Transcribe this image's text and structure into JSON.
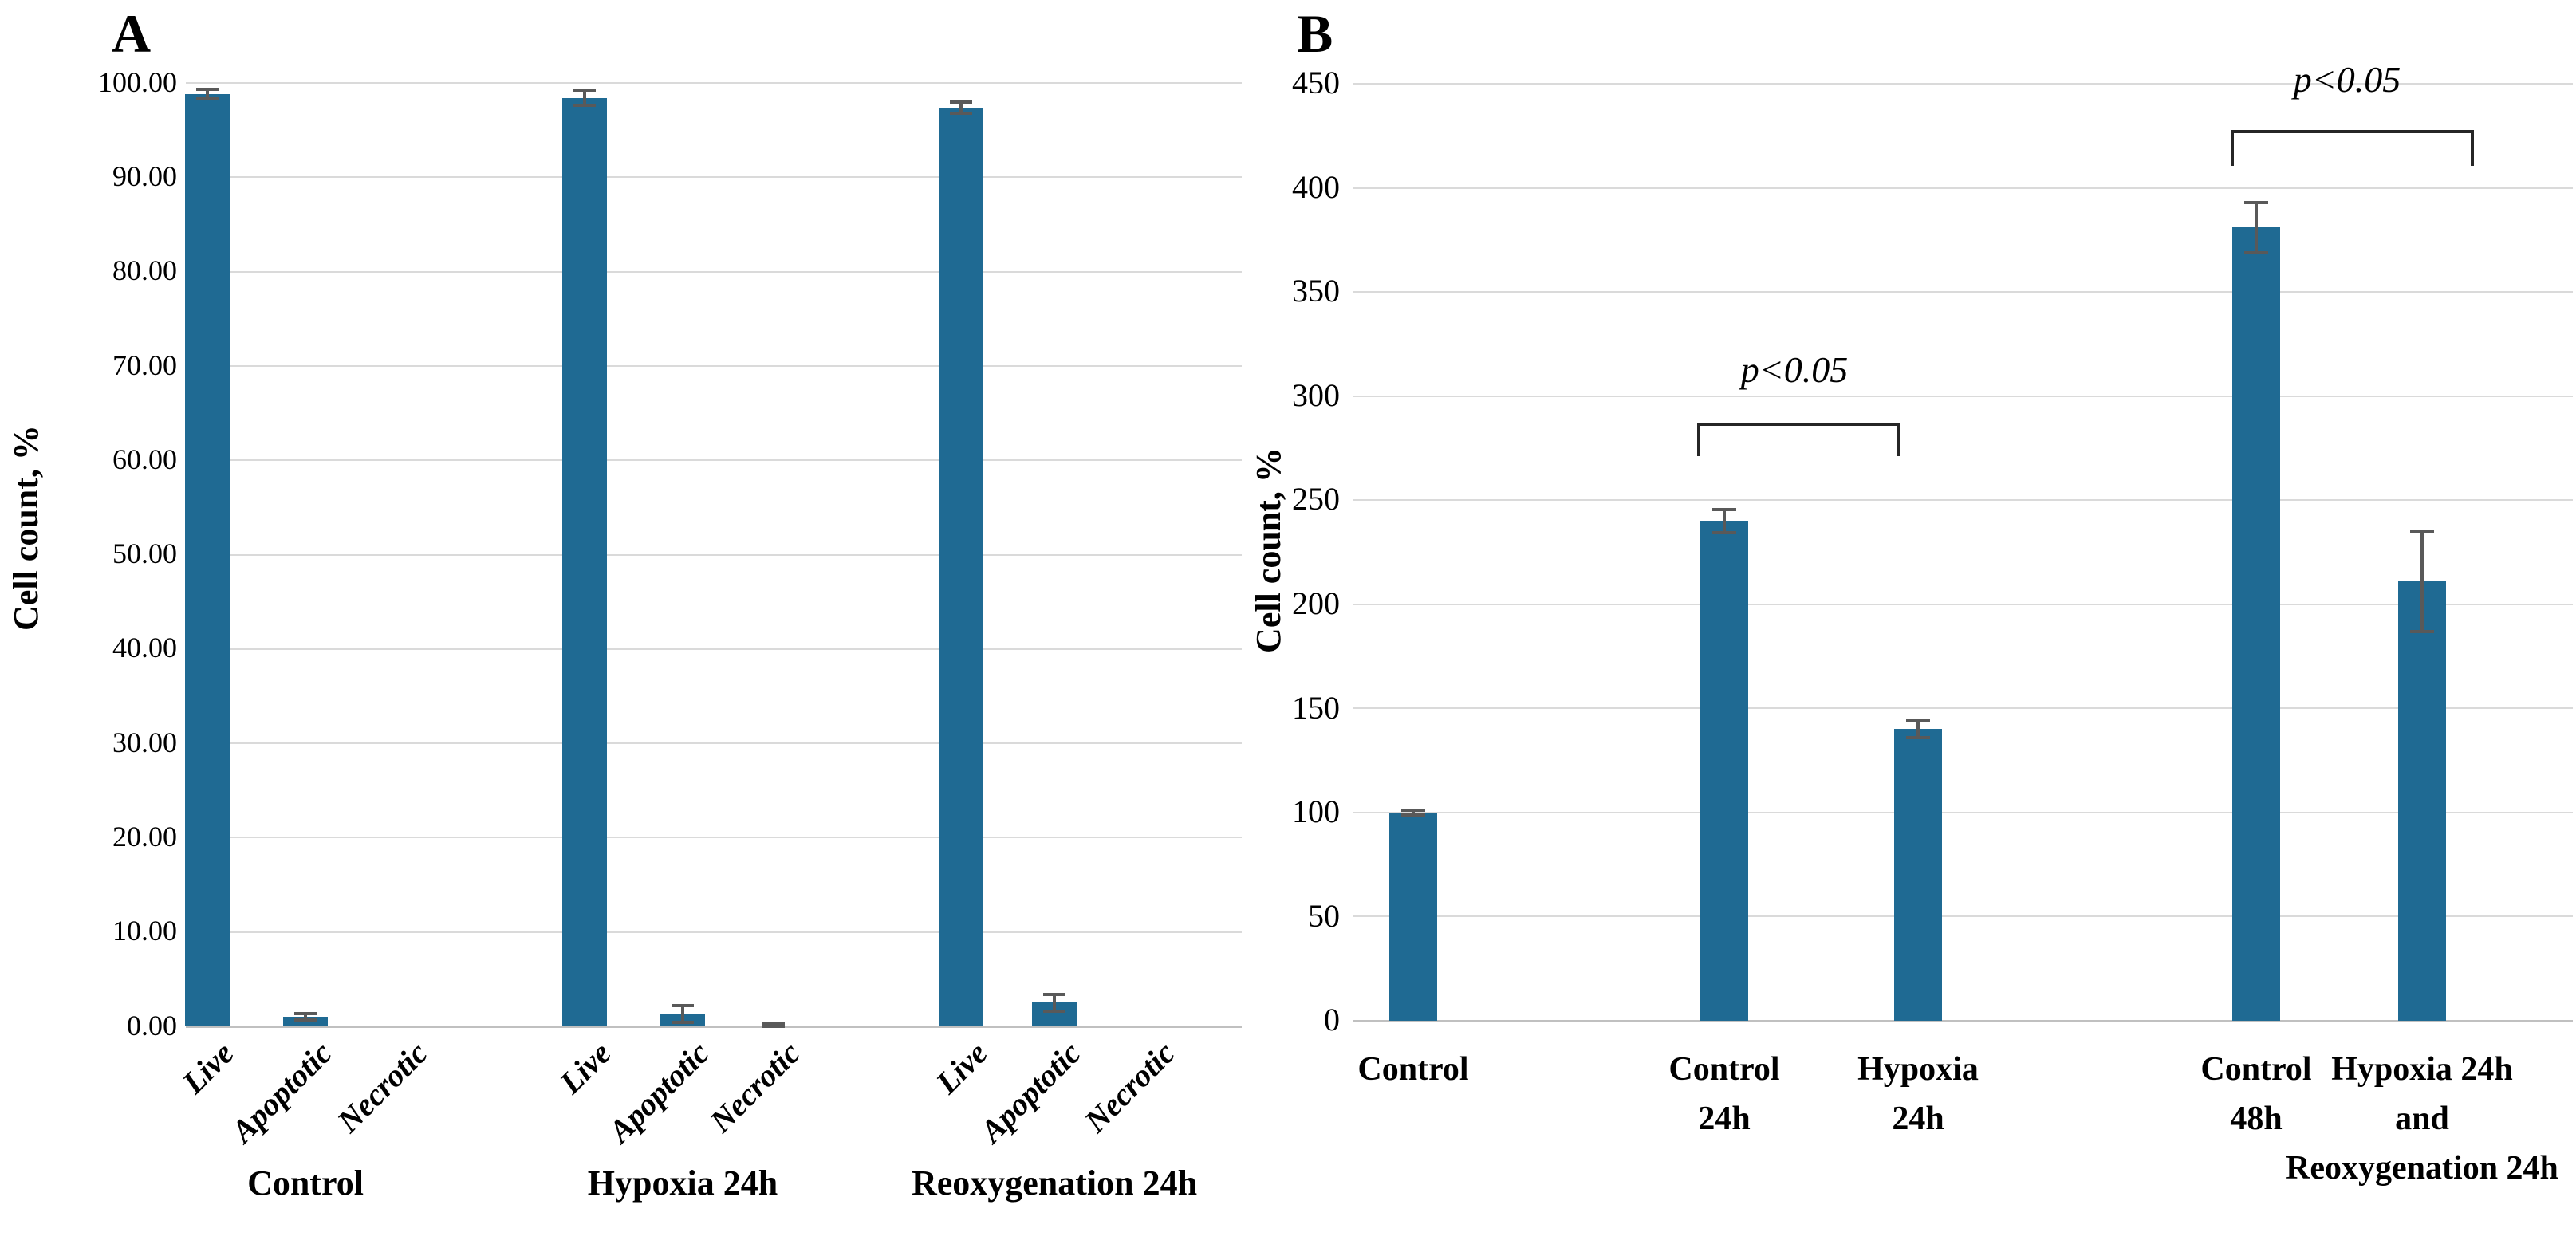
{
  "figure": {
    "description": "Two-panel bar figure of cell counts",
    "colors": {
      "bar": "#1F6A93",
      "error_bar": "#595959",
      "gridline": "#DADADA",
      "axis_line": "#C0C0C0",
      "bracket": "#262626",
      "text": "#000000",
      "background": "#FFFFFF"
    }
  },
  "chart_data": [
    {
      "type": "bar",
      "panel": "A",
      "title": "",
      "xlabel": "",
      "ylabel": "Cell count, %",
      "ylim": [
        0,
        100
      ],
      "grid": true,
      "legend": false,
      "y_tick_labels": [
        "0.00",
        "10.00",
        "20.00",
        "30.00",
        "40.00",
        "50.00",
        "60.00",
        "70.00",
        "80.00",
        "90.00",
        "100.00"
      ],
      "categories": [
        "Live",
        "Apoptotic",
        "Necrotic"
      ],
      "groups": [
        "Control",
        "Hypoxia 24h",
        "Reoxygenation 24h"
      ],
      "series": [
        {
          "group": "Control",
          "values": [
            98.8,
            1.0,
            0.0
          ],
          "errors": [
            0.5,
            0.35,
            0.0
          ]
        },
        {
          "group": "Hypoxia 24h",
          "values": [
            98.4,
            1.3,
            0.1
          ],
          "errors": [
            0.8,
            0.9,
            0.15
          ]
        },
        {
          "group": "Reoxygenation 24h",
          "values": [
            97.4,
            2.5,
            0.0
          ],
          "errors": [
            0.6,
            0.9,
            0.0
          ]
        }
      ]
    },
    {
      "type": "bar",
      "panel": "B",
      "title": "",
      "xlabel": "",
      "ylabel": "Cell count, %",
      "ylim": [
        0,
        450
      ],
      "grid": true,
      "legend": false,
      "y_tick_labels": [
        "0",
        "50",
        "100",
        "150",
        "200",
        "250",
        "300",
        "350",
        "400",
        "450"
      ],
      "categories": [
        [
          "Control"
        ],
        [
          "Control",
          "24h"
        ],
        [
          "Hypoxia",
          "24h"
        ],
        [
          "Control",
          "48h"
        ],
        [
          "Hypoxia 24h",
          "and",
          "Reoxygenation 24h"
        ]
      ],
      "values": [
        100,
        240,
        140,
        381,
        211
      ],
      "errors": [
        1,
        5.5,
        4,
        12,
        24
      ],
      "significance": [
        {
          "text": "p<0.05",
          "between": [
            "Control 24h",
            "Hypoxia 24h"
          ]
        },
        {
          "text": "p<0.05",
          "between": [
            "Control 48h",
            "Hypoxia 24h and Reoxygenation 24h"
          ]
        }
      ]
    }
  ]
}
